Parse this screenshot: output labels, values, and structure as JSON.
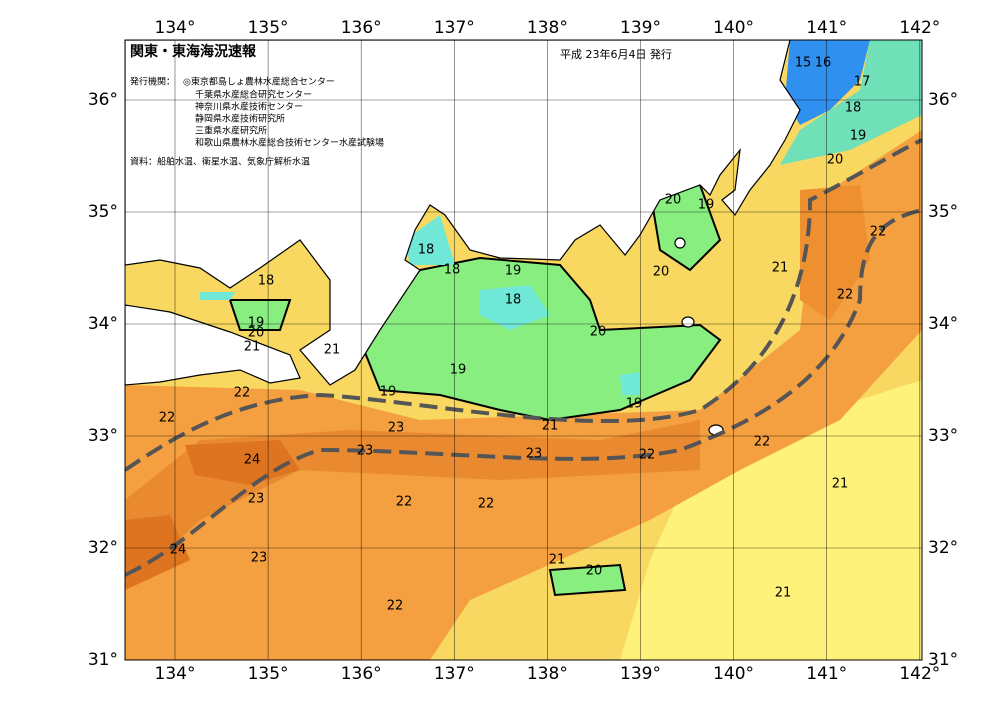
{
  "header": {
    "title": "関東・東海海況速報",
    "issued": "平成 23年6月4日 発行",
    "agencies_label": "発行機関：",
    "agencies": [
      "◎東京都島しょ農林水産総合センター",
      "千葉県水産総合研究センター",
      "神奈川県水産技術センター",
      "静岡県水産技術研究所",
      "三重県水産研究所",
      "和歌山県農林水産総合技術センター水産試験場"
    ],
    "source": "資料：船舶水温、衛星水温、気象庁解析水温"
  },
  "lon_ticks": [
    {
      "value": 134,
      "label": "134°"
    },
    {
      "value": 135,
      "label": "135°"
    },
    {
      "value": 136,
      "label": "136°"
    },
    {
      "value": 137,
      "label": "137°"
    },
    {
      "value": 138,
      "label": "138°"
    },
    {
      "value": 139,
      "label": "139°"
    },
    {
      "value": 140,
      "label": "140°"
    },
    {
      "value": 141,
      "label": "141°"
    },
    {
      "value": 142,
      "label": "142°"
    }
  ],
  "lat_ticks": [
    {
      "value": 31,
      "label": "31°"
    },
    {
      "value": 32,
      "label": "32°"
    },
    {
      "value": 33,
      "label": "33°"
    },
    {
      "value": 34,
      "label": "34°"
    },
    {
      "value": 35,
      "label": "35°"
    },
    {
      "value": 36,
      "label": "36°"
    }
  ],
  "contour_labels": [
    "15",
    "16",
    "17",
    "18",
    "19",
    "20",
    "20",
    "19",
    "18",
    "18",
    "19",
    "18",
    "18",
    "19",
    "20",
    "21",
    "21",
    "21",
    "22",
    "22",
    "20",
    "20",
    "19",
    "19",
    "19",
    "21",
    "22",
    "22",
    "23",
    "23",
    "23",
    "22",
    "22",
    "24",
    "23",
    "22",
    "22",
    "21",
    "24",
    "23",
    "21",
    "20",
    "21",
    "22"
  ]
}
